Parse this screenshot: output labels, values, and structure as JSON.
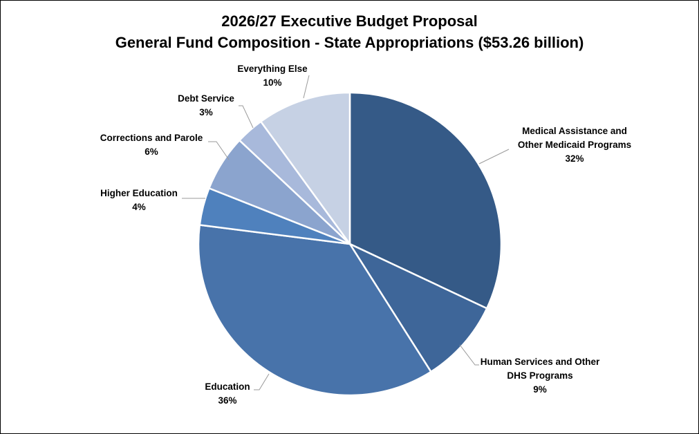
{
  "title_line1": "2026/27 Executive Budget Proposal",
  "title_line2": "General Fund Composition - State Appropriations ($53.26 billion)",
  "chart_data": {
    "type": "pie",
    "title": "2026/27 Executive Budget Proposal General Fund Composition - State Appropriations ($53.26 billion)",
    "slices": [
      {
        "label": "Medical Assistance and Other Medicaid Programs",
        "value": 32,
        "value_label": "32%",
        "color": "#355A87"
      },
      {
        "label": "Human Services and Other DHS Programs",
        "value": 9,
        "value_label": "9%",
        "color": "#3E6699"
      },
      {
        "label": "Education",
        "value": 36,
        "value_label": "36%",
        "color": "#4873AA"
      },
      {
        "label": "Higher Education",
        "value": 4,
        "value_label": "4%",
        "color": "#4F81BD"
      },
      {
        "label": "Corrections and Parole",
        "value": 6,
        "value_label": "6%",
        "color": "#8BA4CE"
      },
      {
        "label": "Debt Service",
        "value": 3,
        "value_label": "3%",
        "color": "#A8B9DB"
      },
      {
        "label": "Everything Else",
        "value": 10,
        "value_label": "10%",
        "color": "#C6D1E4"
      }
    ],
    "label_lines": {
      "Medical Assistance and Other Medicaid Programs": [
        "Medical Assistance and",
        "Other Medicaid Programs"
      ],
      "Human Services and Other DHS Programs": [
        "Human Services and Other",
        "DHS Programs"
      ]
    },
    "start_angle": "12 o'clock",
    "direction": "clockwise",
    "legend": "none"
  }
}
